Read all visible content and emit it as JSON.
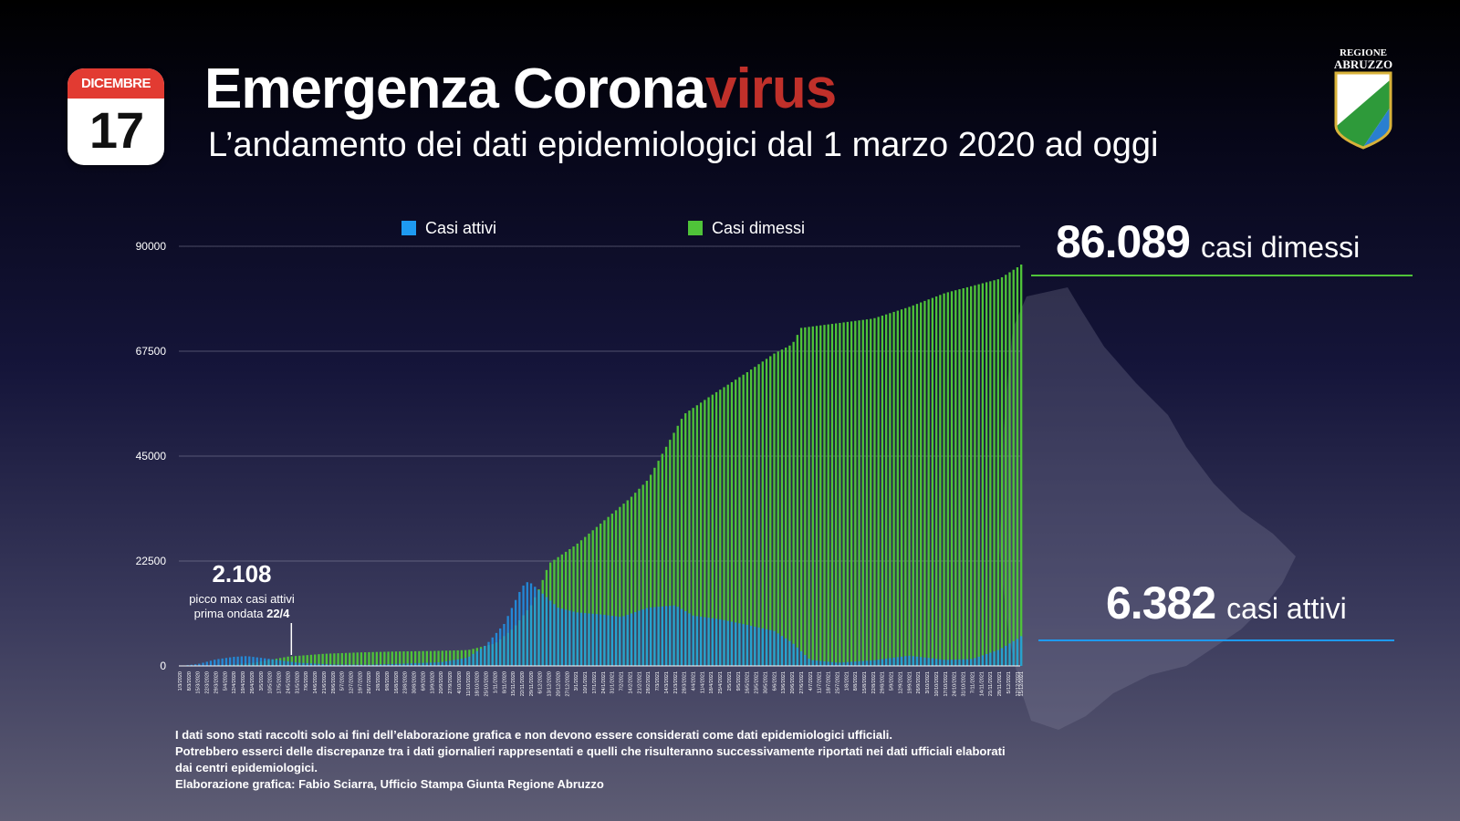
{
  "calendar": {
    "month": "DICEMBRE",
    "day": "17"
  },
  "header": {
    "title_main": "Emergenza Corona",
    "title_accent": "virus",
    "subtitle": "L’andamento dei dati epidemiologici dal 1 marzo 2020 ad oggi"
  },
  "logo": {
    "line1": "REGIONE",
    "line2": "ABRUZZO"
  },
  "colors": {
    "active": "#1e9af0",
    "discharged": "#4fc339",
    "accent": "#c0302a"
  },
  "stats": {
    "discharged": {
      "value": "86.089",
      "label": "casi dimessi"
    },
    "active": {
      "value": "6.382",
      "label": "casi attivi"
    }
  },
  "annotation": {
    "value": "2.108",
    "line1": "picco max casi attivi",
    "line2_prefix": "prima ondata ",
    "line2_date": "22/4"
  },
  "chart_data": {
    "type": "area",
    "x_start": "1/3/2020",
    "x_end": "15/12/2021",
    "ylim": [
      0,
      90000
    ],
    "yticks": [
      0,
      22500,
      45000,
      67500,
      90000
    ],
    "grid": true,
    "legend_position": "top",
    "xtick_labels": [
      "1/3/2020",
      "8/3/2020",
      "15/3/2020",
      "22/3/2020",
      "29/3/2020",
      "5/4/2020",
      "12/4/2020",
      "19/4/2020",
      "26/4/2020",
      "3/5/2020",
      "10/5/2020",
      "17/5/2020",
      "24/5/2020",
      "31/5/2020",
      "7/6/2020",
      "14/6/2020",
      "21/6/2020",
      "28/6/2020",
      "5/7/2020",
      "12/7/2020",
      "19/7/2020",
      "26/7/2020",
      "2/8/2020",
      "9/8/2020",
      "16/8/2020",
      "23/8/2020",
      "30/8/2020",
      "6/9/2020",
      "13/9/2020",
      "20/9/2020",
      "27/9/2020",
      "4/10/2020",
      "11/10/2020",
      "18/10/2020",
      "25/10/2020",
      "1/11/2020",
      "8/11/2020",
      "15/11/2020",
      "22/11/2020",
      "29/11/2020",
      "6/12/2020",
      "13/12/2020",
      "20/12/2020",
      "27/12/2020",
      "3/1/2021",
      "10/1/2021",
      "17/1/2021",
      "24/1/2021",
      "31/1/2021",
      "7/2/2021",
      "14/2/2021",
      "21/2/2021",
      "28/2/2021",
      "7/3/2021",
      "14/3/2021",
      "21/3/2021",
      "28/3/2021",
      "4/4/2021",
      "11/4/2021",
      "18/4/2021",
      "25/4/2021",
      "2/5/2021",
      "9/5/2021",
      "16/5/2021",
      "23/5/2021",
      "30/5/2021",
      "6/6/2021",
      "13/6/2021",
      "20/6/2021",
      "27/6/2021",
      "4/7/2021",
      "11/7/2021",
      "18/7/2021",
      "25/7/2021",
      "1/8/2021",
      "8/8/2021",
      "15/8/2021",
      "22/8/2021",
      "29/8/2021",
      "5/9/2021",
      "12/9/2021",
      "19/9/2021",
      "26/9/2021",
      "3/10/2021",
      "10/10/2021",
      "17/10/2021",
      "24/10/2021",
      "31/10/2021",
      "7/11/2021",
      "14/11/2021",
      "21/11/2021",
      "28/11/2021",
      "5/12/2021",
      "12/12/2021",
      "15/12/2021"
    ],
    "series": [
      {
        "name": "Casi attivi",
        "color": "#1e9af0",
        "points": [
          [
            "1/3/2020",
            0
          ],
          [
            "15/3/2020",
            400
          ],
          [
            "29/3/2020",
            1400
          ],
          [
            "12/4/2020",
            1950
          ],
          [
            "22/4/2020",
            2108
          ],
          [
            "10/5/2020",
            1500
          ],
          [
            "31/5/2020",
            700
          ],
          [
            "28/6/2020",
            300
          ],
          [
            "26/7/2020",
            250
          ],
          [
            "23/8/2020",
            500
          ],
          [
            "20/9/2020",
            800
          ],
          [
            "11/10/2020",
            1800
          ],
          [
            "25/10/2020",
            4500
          ],
          [
            "8/11/2020",
            9000
          ],
          [
            "15/11/2020",
            13000
          ],
          [
            "22/11/2020",
            17000
          ],
          [
            "27/11/2020",
            18200
          ],
          [
            "6/12/2020",
            16000
          ],
          [
            "20/12/2020",
            12500
          ],
          [
            "3/1/2021",
            11500
          ],
          [
            "24/1/2021",
            11000
          ],
          [
            "7/2/2021",
            10500
          ],
          [
            "28/2/2021",
            12500
          ],
          [
            "21/3/2021",
            13000
          ],
          [
            "4/4/2021",
            10800
          ],
          [
            "25/4/2021",
            10000
          ],
          [
            "16/5/2021",
            8800
          ],
          [
            "6/6/2021",
            7500
          ],
          [
            "20/6/2021",
            5000
          ],
          [
            "4/7/2021",
            1300
          ],
          [
            "25/7/2021",
            700
          ],
          [
            "22/8/2021",
            1200
          ],
          [
            "19/9/2021",
            2200
          ],
          [
            "17/10/2021",
            1300
          ],
          [
            "7/11/2021",
            1500
          ],
          [
            "28/11/2021",
            3500
          ],
          [
            "12/12/2021",
            5800
          ],
          [
            "15/12/2021",
            6382
          ]
        ]
      },
      {
        "name": "Casi dimessi",
        "color": "#4fc339",
        "points": [
          [
            "1/3/2020",
            0
          ],
          [
            "29/3/2020",
            100
          ],
          [
            "26/4/2020",
            600
          ],
          [
            "24/5/2020",
            2000
          ],
          [
            "21/6/2020",
            2600
          ],
          [
            "19/7/2020",
            2900
          ],
          [
            "16/8/2020",
            3100
          ],
          [
            "13/9/2020",
            3200
          ],
          [
            "11/10/2020",
            3400
          ],
          [
            "1/11/2020",
            4800
          ],
          [
            "15/11/2020",
            8000
          ],
          [
            "29/11/2020",
            13000
          ],
          [
            "6/12/2020",
            17000
          ],
          [
            "13/12/2020",
            22000
          ],
          [
            "3/1/2021",
            26000
          ],
          [
            "24/1/2021",
            31000
          ],
          [
            "14/2/2021",
            36000
          ],
          [
            "28/2/2021",
            40000
          ],
          [
            "14/3/2021",
            47000
          ],
          [
            "28/3/2021",
            54000
          ],
          [
            "18/4/2021",
            58000
          ],
          [
            "16/5/2021",
            63000
          ],
          [
            "6/6/2021",
            67000
          ],
          [
            "20/6/2021",
            69000
          ],
          [
            "27/6/2021",
            72500
          ],
          [
            "25/7/2021",
            73500
          ],
          [
            "22/8/2021",
            74500
          ],
          [
            "19/9/2021",
            77000
          ],
          [
            "17/10/2021",
            80000
          ],
          [
            "7/11/2021",
            81500
          ],
          [
            "28/11/2021",
            83000
          ],
          [
            "12/12/2021",
            85500
          ],
          [
            "15/12/2021",
            86089
          ]
        ]
      }
    ]
  },
  "footnote": {
    "line1": "I dati sono stati raccolti solo ai fini dell’elaborazione grafica e non devono essere considerati come dati epidemiologici ufficiali.",
    "line2": "Potrebbero esserci delle discrepanze tra i dati giornalieri rappresentati e quelli che risulteranno successivamente riportati nei dati ufficiali elaborati dai centri epidemiologici.",
    "line3": "Elaborazione grafica: Fabio Sciarra, Ufficio Stampa Giunta Regione Abruzzo"
  }
}
